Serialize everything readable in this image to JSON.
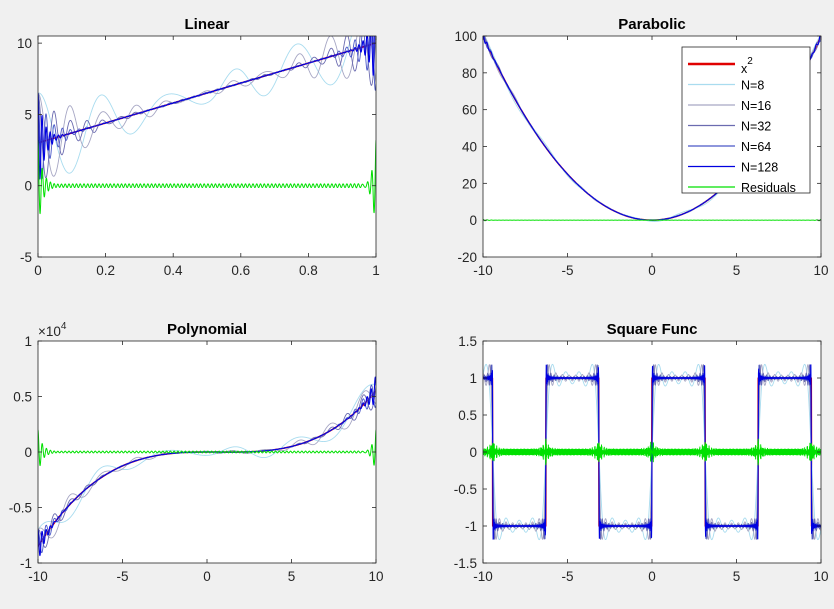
{
  "figure": {
    "background": "#f0f0f0"
  },
  "colors": {
    "exact": "#e00000",
    "n8": "#a9dcef",
    "n16": "#a6a6c4",
    "n32": "#6b6bb0",
    "n64": "#4a57c8",
    "n128": "#0000e0",
    "residuals": "#00e000"
  },
  "chart_data": [
    {
      "type": "line",
      "title": "Linear",
      "function": "linear",
      "xlim": [
        0,
        1
      ],
      "ylim": [
        -5,
        10.5
      ],
      "xticks": [
        0,
        0.2,
        0.4,
        0.6,
        0.8,
        1
      ],
      "xtick_labels": [
        "0",
        "0.2",
        "0.4",
        "0.6",
        "0.8",
        "1"
      ],
      "yticks": [
        -5,
        0,
        5,
        10
      ],
      "ytick_labels": [
        "-5",
        "0",
        "5",
        "10"
      ],
      "y_exponent": "",
      "legend": null,
      "series": [
        {
          "name": "",
          "key": "exact",
          "x": [
            0,
            1
          ],
          "y": [
            3,
            10
          ]
        }
      ]
    },
    {
      "type": "line",
      "title": "Parabolic",
      "function": "parabolic",
      "xlim": [
        -10,
        10
      ],
      "ylim": [
        -20,
        100
      ],
      "xticks": [
        -10,
        -5,
        0,
        5,
        10
      ],
      "xtick_labels": [
        "-10",
        "-5",
        "0",
        "5",
        "10"
      ],
      "yticks": [
        -20,
        0,
        20,
        40,
        60,
        80,
        100
      ],
      "ytick_labels": [
        "-20",
        "0",
        "20",
        "40",
        "60",
        "80",
        "100"
      ],
      "y_exponent": "",
      "legend": {
        "placement": "top-right",
        "entries": [
          {
            "label": "x",
            "sup": "2",
            "key": "exact"
          },
          {
            "label": "N=8",
            "sup": "",
            "key": "n8"
          },
          {
            "label": "N=16",
            "sup": "",
            "key": "n16"
          },
          {
            "label": "N=32",
            "sup": "",
            "key": "n32"
          },
          {
            "label": "N=64",
            "sup": "",
            "key": "n64"
          },
          {
            "label": "N=128",
            "sup": "",
            "key": "n128"
          },
          {
            "label": "Residuals",
            "sup": "",
            "key": "residuals"
          }
        ]
      },
      "series": [
        {
          "name": "x2",
          "key": "exact",
          "x": [
            -10,
            -5,
            0,
            5,
            10
          ],
          "y": [
            100,
            25,
            0,
            25,
            100
          ]
        }
      ]
    },
    {
      "type": "line",
      "title": "Polynomial",
      "function": "polynomial",
      "xlim": [
        -10,
        10
      ],
      "ylim": [
        -10000,
        10000
      ],
      "xticks": [
        -10,
        -5,
        0,
        5,
        10
      ],
      "xtick_labels": [
        "-10",
        "-5",
        "0",
        "5",
        "10"
      ],
      "yticks": [
        -10000,
        -5000,
        0,
        5000,
        10000
      ],
      "ytick_labels": [
        "-1",
        "-0.5",
        "0",
        "0.5",
        "1"
      ],
      "y_exponent": "4",
      "legend": null,
      "series": [
        {
          "name": "",
          "key": "exact",
          "x": [
            -10,
            -5,
            0,
            5,
            10
          ],
          "y": [
            -8500,
            -1600,
            0,
            1100,
            6900
          ]
        }
      ]
    },
    {
      "type": "line",
      "title": "Square Func",
      "function": "square",
      "xlim": [
        -10,
        10
      ],
      "ylim": [
        -1.5,
        1.5
      ],
      "xticks": [
        -10,
        -5,
        0,
        5,
        10
      ],
      "xtick_labels": [
        "-10",
        "-5",
        "0",
        "5",
        "10"
      ],
      "yticks": [
        -1.5,
        -1,
        -0.5,
        0,
        0.5,
        1,
        1.5
      ],
      "ytick_labels": [
        "-1.5",
        "-1",
        "-0.5",
        "0",
        "0.5",
        "1",
        "1.5"
      ],
      "y_exponent": "",
      "legend": null,
      "series": [
        {
          "name": "",
          "key": "exact",
          "x": [
            -9.42,
            -6.28,
            -3.14,
            0,
            3.14,
            6.28,
            9.42
          ],
          "y": [
            1,
            -1,
            1,
            -1,
            1,
            -1,
            1
          ]
        }
      ]
    }
  ]
}
